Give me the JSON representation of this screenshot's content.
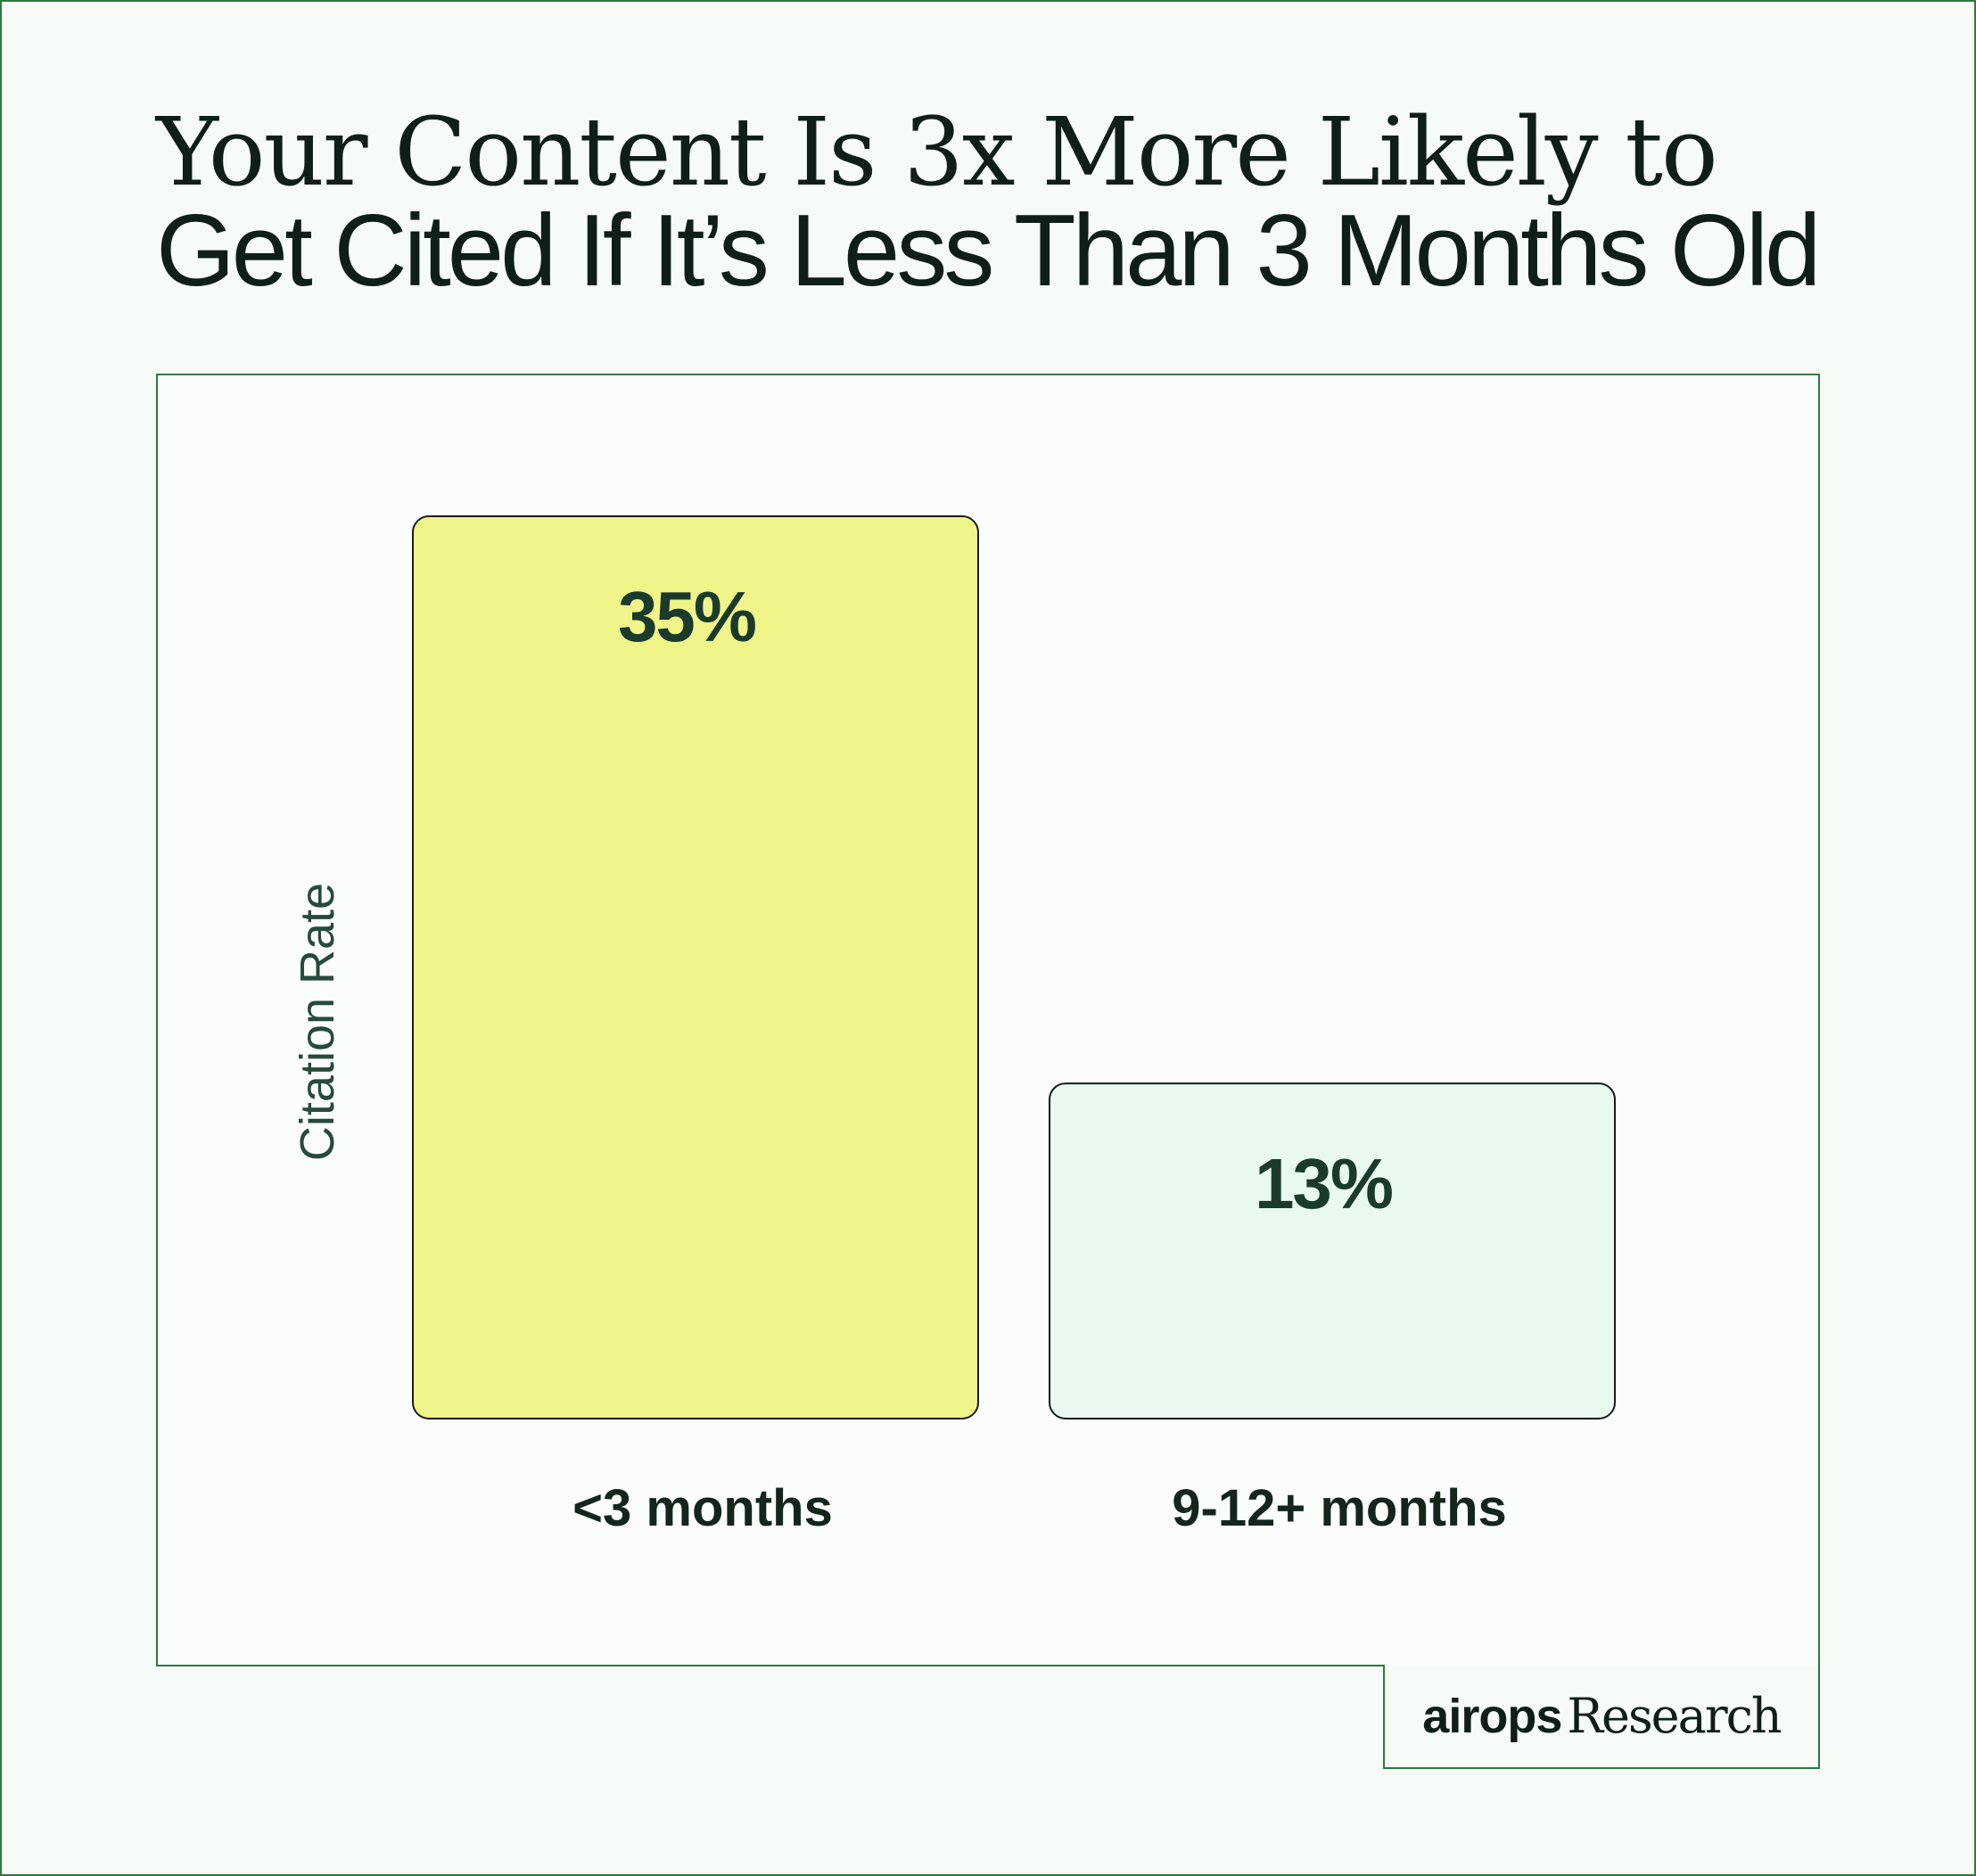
{
  "title": {
    "line1": "Your Content Is 3x More Likely to",
    "line2": "Get Cited If It’s Less Than 3 Months Old"
  },
  "brand": {
    "logo": "airops",
    "label": "Research"
  },
  "colors": {
    "frame": "#2c7a3e",
    "background": "#f6fbf8",
    "bar_recent": "#f0f58a",
    "bar_old": "#e8f9f0",
    "bar_stroke": "#1a1a1a"
  },
  "chart_data": {
    "type": "bar",
    "categories": [
      "<3 months",
      "9-12+ months"
    ],
    "values": [
      35,
      13
    ],
    "value_labels": [
      "35%",
      "13%"
    ],
    "bar_colors": [
      "#f0f58a",
      "#e8f9f0"
    ],
    "ylabel": "Citation Rate",
    "xlabel": "",
    "ylim": [
      0,
      35
    ],
    "grid": false,
    "legend": "none"
  }
}
